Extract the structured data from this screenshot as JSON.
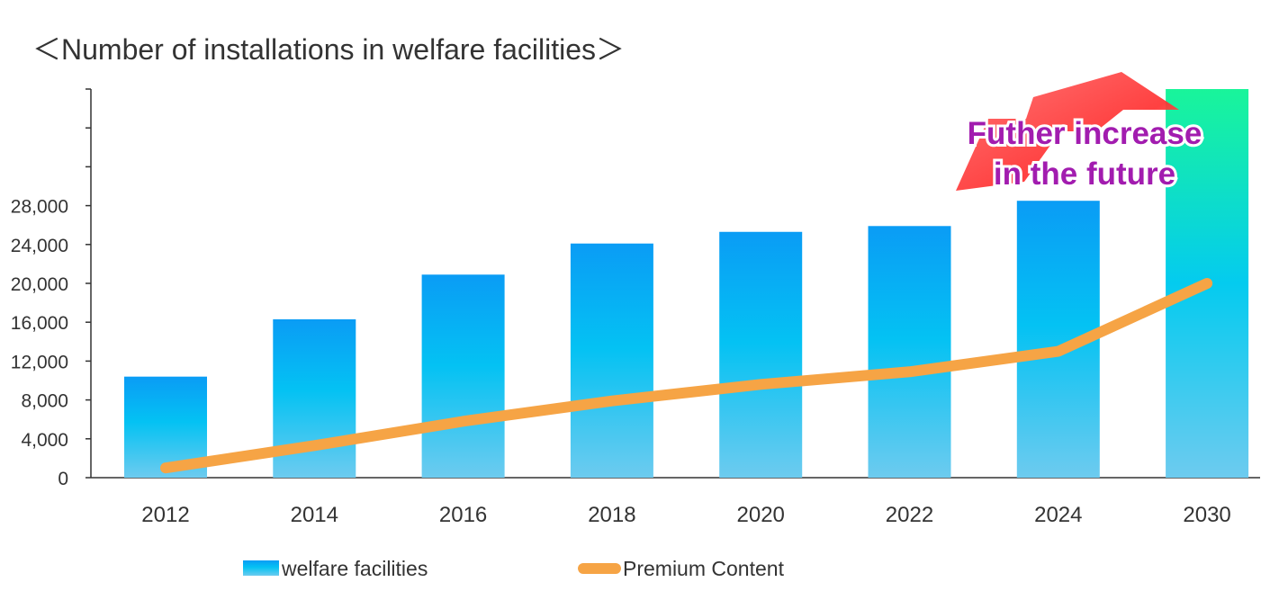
{
  "chart_data": {
    "type": "bar",
    "title": "＜Number of installations in welfare facilities＞",
    "categories": [
      "2012",
      "2014",
      "2016",
      "2018",
      "2020",
      "2022",
      "2024",
      "2030"
    ],
    "yticks": [
      "0",
      "4,000",
      "8,000",
      "12,000",
      "16,000",
      "20,000",
      "24,000",
      "28,000"
    ],
    "ylim": [
      0,
      40000
    ],
    "series": [
      {
        "name": "welfare facilities",
        "type": "bar",
        "values": [
          10400,
          16300,
          20900,
          24100,
          25300,
          25900,
          28500,
          40000
        ],
        "color": "#0ea5e9"
      },
      {
        "name": "Premium Content",
        "type": "line",
        "values": [
          1000,
          3300,
          5800,
          7900,
          9600,
          10900,
          13000,
          20000
        ],
        "color": "#f6a445"
      }
    ],
    "annotations": [
      {
        "lines": [
          "Futher increase",
          "in the future"
        ],
        "color": "#a21caf"
      }
    ],
    "legend": "bottom",
    "grid": false
  }
}
